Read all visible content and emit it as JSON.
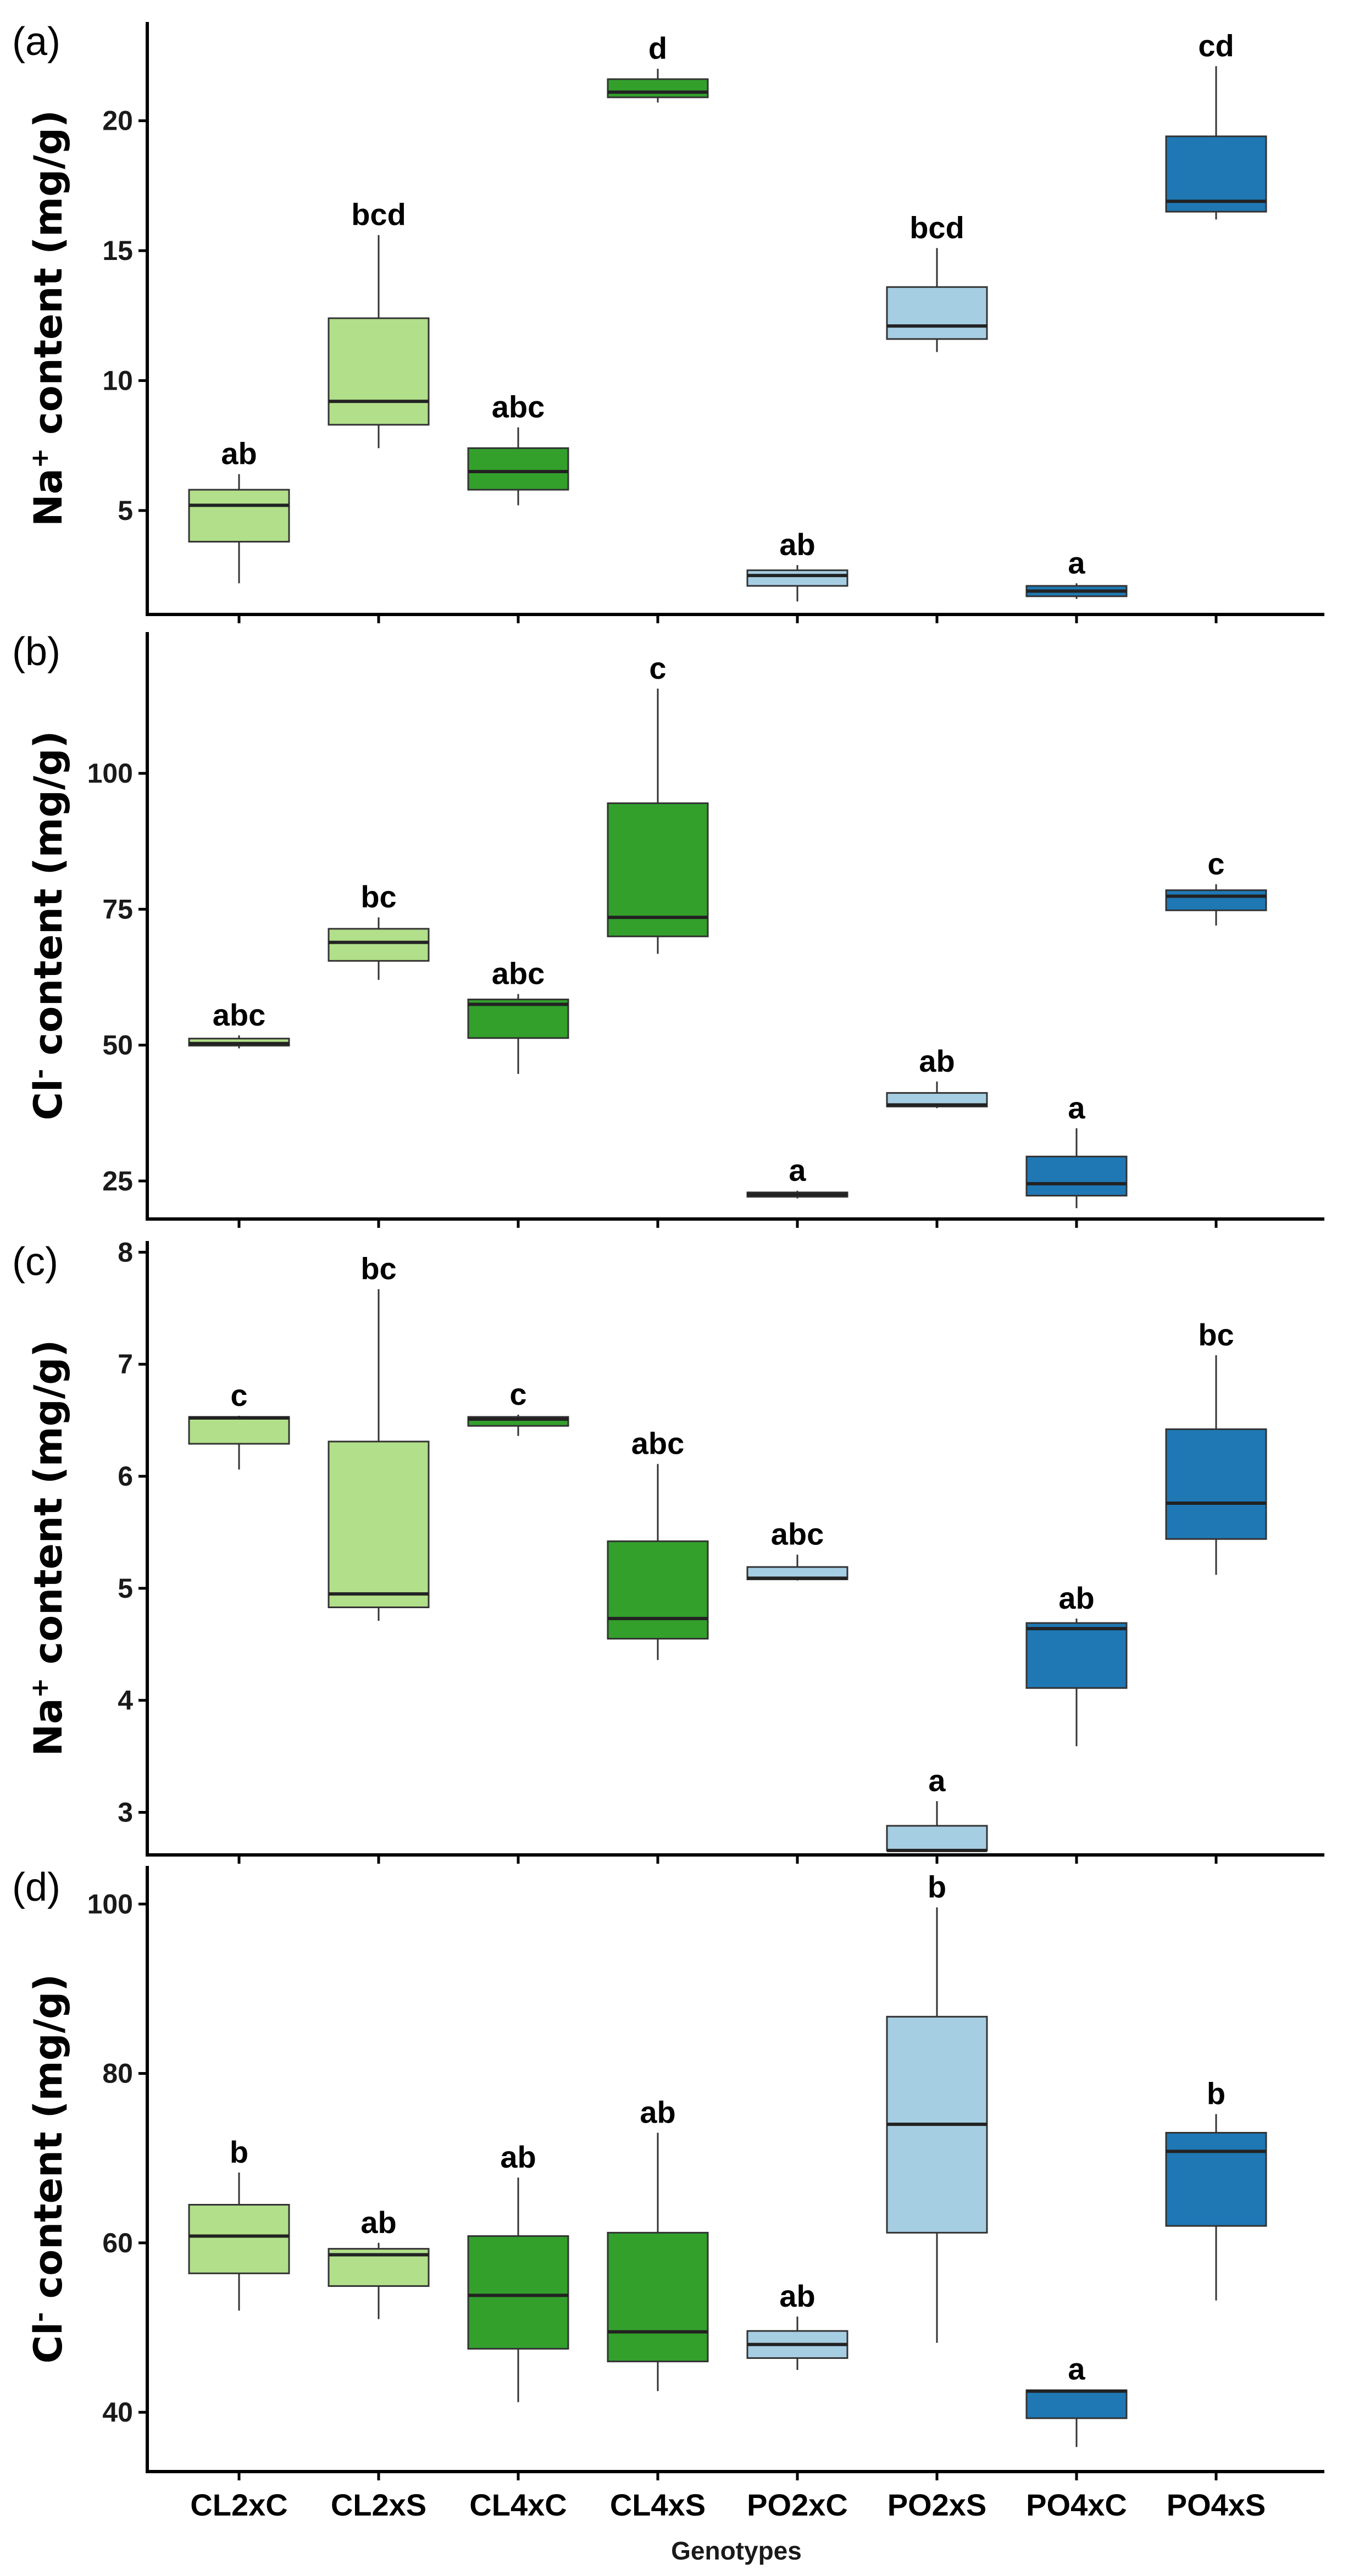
{
  "colors": {
    "CL2": "#b2df8a",
    "CL4": "#33a02c",
    "PO2": "#a6cee3",
    "PO4": "#1f78b4",
    "outline": "#333333",
    "axis": "#000000"
  },
  "chart_data": [
    {
      "type": "box",
      "panel": "(a)",
      "title": "",
      "xlabel": "",
      "ylabel": {
        "main": "Na",
        "sup": "+",
        "rest": " content (mg/g)"
      },
      "categories": [
        "CL2xC",
        "CL2xS",
        "CL4xC",
        "CL4xS",
        "PO2xC",
        "PO2xS",
        "PO4xC",
        "PO4xS"
      ],
      "yticks": [
        5,
        10,
        15,
        20
      ],
      "ylim": [
        1.0,
        23.8
      ],
      "boxes": [
        {
          "group": "CL2",
          "min": 2.2,
          "q1": 3.8,
          "median": 5.2,
          "q3": 5.8,
          "max": 6.4,
          "letter": "ab"
        },
        {
          "group": "CL2",
          "min": 7.4,
          "q1": 8.3,
          "median": 9.2,
          "q3": 12.4,
          "max": 15.6,
          "letter": "bcd"
        },
        {
          "group": "CL4",
          "min": 5.2,
          "q1": 5.8,
          "median": 6.5,
          "q3": 7.4,
          "max": 8.2,
          "letter": "abc"
        },
        {
          "group": "CL4",
          "min": 20.7,
          "q1": 20.9,
          "median": 21.1,
          "q3": 21.6,
          "max": 22.0,
          "letter": "d"
        },
        {
          "group": "PO2",
          "min": 1.5,
          "q1": 2.1,
          "median": 2.5,
          "q3": 2.7,
          "max": 2.9,
          "letter": "ab"
        },
        {
          "group": "PO2",
          "min": 11.1,
          "q1": 11.6,
          "median": 12.1,
          "q3": 13.6,
          "max": 15.1,
          "letter": "bcd"
        },
        {
          "group": "PO4",
          "min": 1.6,
          "q1": 1.7,
          "median": 1.9,
          "q3": 2.1,
          "max": 2.2,
          "letter": "a"
        },
        {
          "group": "PO4",
          "min": 16.2,
          "q1": 16.5,
          "median": 16.9,
          "q3": 19.4,
          "max": 22.1,
          "letter": "cd"
        }
      ]
    },
    {
      "type": "box",
      "panel": "(b)",
      "title": "",
      "xlabel": "",
      "ylabel": {
        "main": "Cl",
        "sup": "-",
        "rest": " content (mg/g)"
      },
      "categories": [
        "CL2xC",
        "CL2xS",
        "CL4xC",
        "CL4xS",
        "PO2xC",
        "PO2xS",
        "PO4xC",
        "PO4xS"
      ],
      "yticks": [
        25,
        50,
        75,
        100
      ],
      "ylim": [
        18.0,
        126.0
      ],
      "boxes": [
        {
          "group": "CL2",
          "min": 49.4,
          "q1": 49.9,
          "median": 50.3,
          "q3": 51.2,
          "max": 51.8,
          "letter": "abc"
        },
        {
          "group": "CL2",
          "min": 62.0,
          "q1": 65.5,
          "median": 68.9,
          "q3": 71.4,
          "max": 73.5,
          "letter": "bc"
        },
        {
          "group": "CL4",
          "min": 44.7,
          "q1": 51.3,
          "median": 57.5,
          "q3": 58.4,
          "max": 59.4,
          "letter": "abc"
        },
        {
          "group": "CL4",
          "min": 66.8,
          "q1": 70.0,
          "median": 73.5,
          "q3": 94.5,
          "max": 115.6,
          "letter": "c"
        },
        {
          "group": "PO2",
          "min": 21.8,
          "q1": 22.1,
          "median": 22.5,
          "q3": 22.9,
          "max": 23.2,
          "letter": "a"
        },
        {
          "group": "PO2",
          "min": 38.4,
          "q1": 38.7,
          "median": 39.0,
          "q3": 41.2,
          "max": 43.3,
          "letter": "ab"
        },
        {
          "group": "PO4",
          "min": 20.0,
          "q1": 22.3,
          "median": 24.5,
          "q3": 29.5,
          "max": 34.7,
          "letter": "a"
        },
        {
          "group": "PO4",
          "min": 72.0,
          "q1": 74.8,
          "median": 77.4,
          "q3": 78.5,
          "max": 79.6,
          "letter": "c"
        }
      ]
    },
    {
      "type": "box",
      "panel": "(c)",
      "title": "",
      "xlabel": "",
      "ylabel": {
        "main": "Na",
        "sup": "+",
        "rest": " content (mg/g)"
      },
      "categories": [
        "CL2xC",
        "CL2xS",
        "CL4xC",
        "CL4xS",
        "PO2xC",
        "PO2xS",
        "PO4xC",
        "PO4xS"
      ],
      "yticks": [
        3,
        4,
        5,
        6,
        7,
        8
      ],
      "ylim": [
        2.62,
        8.1
      ],
      "boxes": [
        {
          "group": "CL2",
          "min": 6.06,
          "q1": 6.29,
          "median": 6.52,
          "q3": 6.53,
          "max": 6.54,
          "letter": "c"
        },
        {
          "group": "CL2",
          "min": 4.71,
          "q1": 4.83,
          "median": 4.95,
          "q3": 6.31,
          "max": 7.67,
          "letter": "bc"
        },
        {
          "group": "CL4",
          "min": 6.36,
          "q1": 6.45,
          "median": 6.51,
          "q3": 6.53,
          "max": 6.55,
          "letter": "c"
        },
        {
          "group": "CL4",
          "min": 4.36,
          "q1": 4.55,
          "median": 4.73,
          "q3": 5.42,
          "max": 6.11,
          "letter": "abc"
        },
        {
          "group": "PO2",
          "min": 5.07,
          "q1": 5.08,
          "median": 5.09,
          "q3": 5.19,
          "max": 5.3,
          "letter": "abc"
        },
        {
          "group": "PO2",
          "min": 2.66,
          "q1": 2.66,
          "median": 2.66,
          "q3": 2.88,
          "max": 3.1,
          "letter": "a"
        },
        {
          "group": "PO4",
          "min": 3.59,
          "q1": 4.11,
          "median": 4.64,
          "q3": 4.69,
          "max": 4.73,
          "letter": "ab"
        },
        {
          "group": "PO4",
          "min": 5.12,
          "q1": 5.44,
          "median": 5.76,
          "q3": 6.42,
          "max": 7.08,
          "letter": "bc"
        }
      ]
    },
    {
      "type": "box",
      "panel": "(d)",
      "title": "",
      "xlabel": "Genotypes",
      "ylabel": {
        "main": "Cl",
        "sup": "-",
        "rest": " content (mg/g)"
      },
      "categories": [
        "CL2xC",
        "CL2xS",
        "CL4xC",
        "CL4xS",
        "PO2xC",
        "PO2xS",
        "PO4xC",
        "PO4xS"
      ],
      "yticks": [
        40,
        60,
        80,
        100
      ],
      "ylim": [
        33.0,
        104.5
      ],
      "boxes": [
        {
          "group": "CL2",
          "min": 52.0,
          "q1": 56.4,
          "median": 60.8,
          "q3": 64.5,
          "max": 68.3,
          "letter": "b"
        },
        {
          "group": "CL2",
          "min": 51.0,
          "q1": 54.9,
          "median": 58.6,
          "q3": 59.3,
          "max": 60.0,
          "letter": "ab"
        },
        {
          "group": "CL4",
          "min": 41.2,
          "q1": 47.5,
          "median": 53.8,
          "q3": 60.8,
          "max": 67.7,
          "letter": "ab"
        },
        {
          "group": "CL4",
          "min": 42.5,
          "q1": 46.0,
          "median": 49.5,
          "q3": 61.2,
          "max": 73.0,
          "letter": "ab"
        },
        {
          "group": "PO2",
          "min": 45.0,
          "q1": 46.4,
          "median": 48.0,
          "q3": 49.6,
          "max": 51.3,
          "letter": "ab"
        },
        {
          "group": "PO2",
          "min": 48.2,
          "q1": 61.2,
          "median": 74.0,
          "q3": 86.7,
          "max": 99.6,
          "letter": "b"
        },
        {
          "group": "PO4",
          "min": 35.9,
          "q1": 39.3,
          "median": 42.5,
          "q3": 42.6,
          "max": 42.7,
          "letter": "a"
        },
        {
          "group": "PO4",
          "min": 53.2,
          "q1": 62.0,
          "median": 70.8,
          "q3": 73.0,
          "max": 75.2,
          "letter": "b"
        }
      ]
    }
  ]
}
